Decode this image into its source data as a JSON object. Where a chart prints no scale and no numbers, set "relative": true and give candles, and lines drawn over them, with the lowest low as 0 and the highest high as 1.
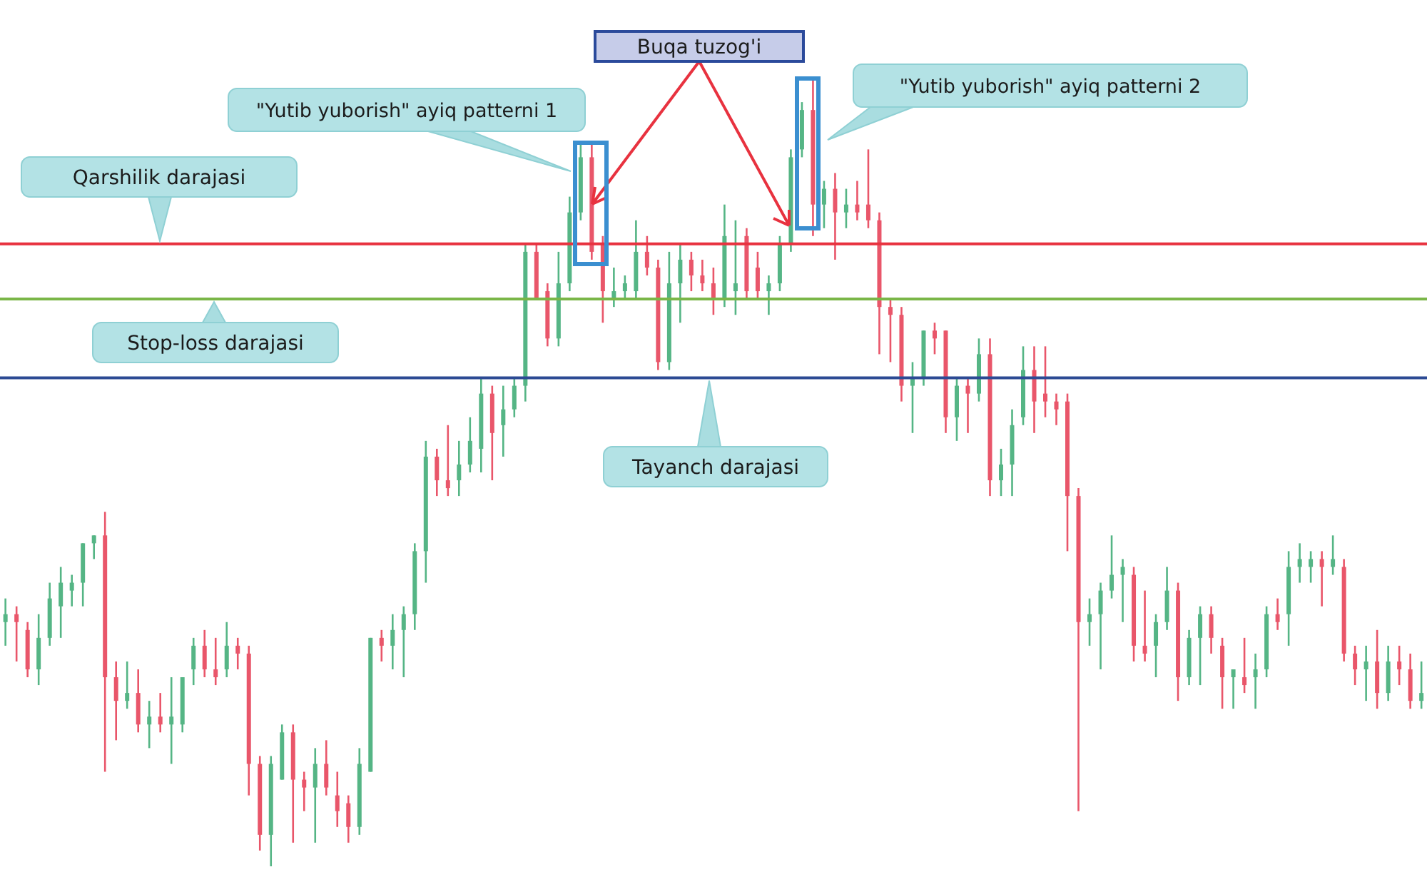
{
  "chart_data": {
    "type": "candlestick",
    "relative": true,
    "categories": [
      null,
      null,
      null,
      null,
      null,
      null,
      null,
      null,
      null,
      null,
      null,
      null,
      null,
      null,
      null,
      null,
      null,
      null,
      null,
      null,
      null,
      null,
      null,
      null,
      null,
      null,
      null,
      null,
      null,
      null,
      null,
      null,
      null,
      null,
      null,
      null,
      null,
      null,
      null,
      null,
      null,
      null,
      null,
      null,
      null,
      null,
      null,
      null,
      null,
      null,
      null,
      null,
      null,
      null,
      null,
      null,
      null,
      null,
      null,
      null,
      null,
      null,
      null,
      null,
      null,
      null,
      null,
      null,
      null,
      null,
      null,
      null,
      null,
      null,
      null,
      null,
      null,
      null,
      null,
      null,
      null,
      null,
      null,
      null,
      null,
      null,
      null,
      null,
      null,
      null,
      null,
      null,
      null,
      null,
      null,
      null,
      null,
      null,
      null,
      null,
      null,
      null,
      null,
      null,
      null,
      null,
      null,
      null,
      null,
      null,
      null,
      null,
      null,
      null,
      null,
      null,
      null,
      null,
      null,
      null,
      null,
      null,
      null,
      null,
      null,
      null,
      null,
      null,
      null
    ],
    "ohlc": [
      [
        0.31,
        0.34,
        0.28,
        0.32
      ],
      [
        0.32,
        0.33,
        0.26,
        0.31
      ],
      [
        0.3,
        0.31,
        0.24,
        0.25
      ],
      [
        0.25,
        0.32,
        0.23,
        0.29
      ],
      [
        0.29,
        0.36,
        0.28,
        0.34
      ],
      [
        0.33,
        0.38,
        0.29,
        0.36
      ],
      [
        0.35,
        0.37,
        0.33,
        0.36
      ],
      [
        0.36,
        0.41,
        0.33,
        0.41
      ],
      [
        0.41,
        0.42,
        0.39,
        0.42
      ],
      [
        0.42,
        0.45,
        0.12,
        0.24
      ],
      [
        0.24,
        0.26,
        0.16,
        0.21
      ],
      [
        0.21,
        0.26,
        0.2,
        0.22
      ],
      [
        0.22,
        0.25,
        0.17,
        0.18
      ],
      [
        0.18,
        0.21,
        0.15,
        0.19
      ],
      [
        0.19,
        0.22,
        0.17,
        0.18
      ],
      [
        0.18,
        0.24,
        0.13,
        0.19
      ],
      [
        0.18,
        0.24,
        0.17,
        0.24
      ],
      [
        0.25,
        0.29,
        0.23,
        0.28
      ],
      [
        0.28,
        0.3,
        0.24,
        0.25
      ],
      [
        0.25,
        0.29,
        0.23,
        0.24
      ],
      [
        0.25,
        0.31,
        0.24,
        0.28
      ],
      [
        0.28,
        0.29,
        0.25,
        0.27
      ],
      [
        0.27,
        0.28,
        0.09,
        0.13
      ],
      [
        0.13,
        0.14,
        0.02,
        0.04
      ],
      [
        0.04,
        0.14,
        0,
        0.13
      ],
      [
        0.11,
        0.18,
        0.11,
        0.17
      ],
      [
        0.17,
        0.18,
        0.03,
        0.11
      ],
      [
        0.11,
        0.12,
        0.07,
        0.1
      ],
      [
        0.1,
        0.15,
        0.03,
        0.13
      ],
      [
        0.13,
        0.16,
        0.09,
        0.1
      ],
      [
        0.09,
        0.12,
        0.05,
        0.07
      ],
      [
        0.08,
        0.09,
        0.03,
        0.05
      ],
      [
        0.05,
        0.15,
        0.04,
        0.13
      ],
      [
        0.12,
        0.29,
        0.12,
        0.29
      ],
      [
        0.29,
        0.3,
        0.26,
        0.28
      ],
      [
        0.28,
        0.32,
        0.25,
        0.3
      ],
      [
        0.3,
        0.33,
        0.24,
        0.32
      ],
      [
        0.32,
        0.41,
        0.3,
        0.4
      ],
      [
        0.4,
        0.54,
        0.36,
        0.52
      ],
      [
        0.52,
        0.53,
        0.47,
        0.49
      ],
      [
        0.49,
        0.56,
        0.47,
        0.48
      ],
      [
        0.49,
        0.54,
        0.47,
        0.51
      ],
      [
        0.51,
        0.57,
        0.5,
        0.54
      ],
      [
        0.53,
        0.62,
        0.5,
        0.6
      ],
      [
        0.6,
        0.61,
        0.49,
        0.55
      ],
      [
        0.56,
        0.61,
        0.52,
        0.58
      ],
      [
        0.58,
        0.62,
        0.57,
        0.61
      ],
      [
        0.61,
        0.79,
        0.59,
        0.78
      ],
      [
        0.78,
        0.79,
        0.72,
        0.72
      ],
      [
        0.73,
        0.74,
        0.66,
        0.67
      ],
      [
        0.67,
        0.78,
        0.66,
        0.74
      ],
      [
        0.74,
        0.85,
        0.73,
        0.83
      ],
      [
        0.83,
        0.92,
        0.82,
        0.9
      ],
      [
        0.9,
        0.92,
        0.77,
        0.78
      ],
      [
        0.79,
        0.8,
        0.69,
        0.73
      ],
      [
        0.72,
        0.76,
        0.71,
        0.73
      ],
      [
        0.73,
        0.75,
        0.72,
        0.74
      ],
      [
        0.73,
        0.82,
        0.72,
        0.78
      ],
      [
        0.78,
        0.8,
        0.75,
        0.76
      ],
      [
        0.76,
        0.77,
        0.63,
        0.64
      ],
      [
        0.64,
        0.78,
        0.63,
        0.74
      ],
      [
        0.74,
        0.79,
        0.69,
        0.77
      ],
      [
        0.77,
        0.78,
        0.73,
        0.75
      ],
      [
        0.75,
        0.77,
        0.73,
        0.74
      ],
      [
        0.74,
        0.76,
        0.7,
        0.72
      ],
      [
        0.72,
        0.84,
        0.71,
        0.8
      ],
      [
        0.73,
        0.82,
        0.7,
        0.74
      ],
      [
        0.8,
        0.81,
        0.72,
        0.73
      ],
      [
        0.76,
        0.78,
        0.72,
        0.73
      ],
      [
        0.73,
        0.75,
        0.7,
        0.74
      ],
      [
        0.74,
        0.8,
        0.73,
        0.79
      ],
      [
        0.79,
        0.91,
        0.78,
        0.9
      ],
      [
        0.91,
        0.97,
        0.9,
        0.96
      ],
      [
        0.96,
        1,
        0.8,
        0.84
      ],
      [
        0.84,
        0.87,
        0.81,
        0.86
      ],
      [
        0.86,
        0.88,
        0.77,
        0.83
      ],
      [
        0.83,
        0.86,
        0.81,
        0.84
      ],
      [
        0.84,
        0.87,
        0.82,
        0.83
      ],
      [
        0.84,
        0.91,
        0.81,
        0.82
      ],
      [
        0.82,
        0.83,
        0.65,
        0.71
      ],
      [
        0.71,
        0.72,
        0.64,
        0.7
      ],
      [
        0.7,
        0.71,
        0.59,
        0.61
      ],
      [
        0.61,
        0.64,
        0.55,
        0.62
      ],
      [
        0.62,
        0.68,
        0.61,
        0.68
      ],
      [
        0.68,
        0.69,
        0.65,
        0.67
      ],
      [
        0.68,
        0.68,
        0.55,
        0.57
      ],
      [
        0.57,
        0.62,
        0.54,
        0.61
      ],
      [
        0.61,
        0.62,
        0.55,
        0.6
      ],
      [
        0.6,
        0.67,
        0.59,
        0.65
      ],
      [
        0.65,
        0.67,
        0.47,
        0.49
      ],
      [
        0.49,
        0.53,
        0.47,
        0.51
      ],
      [
        0.51,
        0.58,
        0.47,
        0.56
      ],
      [
        0.57,
        0.66,
        0.56,
        0.63
      ],
      [
        0.63,
        0.66,
        0.55,
        0.59
      ],
      [
        0.6,
        0.66,
        0.57,
        0.59
      ],
      [
        0.59,
        0.6,
        0.56,
        0.58
      ],
      [
        0.59,
        0.6,
        0.4,
        0.47
      ],
      [
        0.47,
        0.48,
        0.07,
        0.31
      ],
      [
        0.31,
        0.34,
        0.28,
        0.32
      ],
      [
        0.32,
        0.36,
        0.25,
        0.35
      ],
      [
        0.35,
        0.42,
        0.34,
        0.37
      ],
      [
        0.37,
        0.39,
        0.31,
        0.38
      ],
      [
        0.37,
        0.38,
        0.26,
        0.28
      ],
      [
        0.28,
        0.35,
        0.26,
        0.27
      ],
      [
        0.28,
        0.32,
        0.24,
        0.31
      ],
      [
        0.31,
        0.38,
        0.3,
        0.35
      ],
      [
        0.35,
        0.36,
        0.21,
        0.24
      ],
      [
        0.24,
        0.3,
        0.23,
        0.29
      ],
      [
        0.29,
        0.33,
        0.23,
        0.32
      ],
      [
        0.32,
        0.33,
        0.27,
        0.29
      ],
      [
        0.28,
        0.29,
        0.2,
        0.24
      ],
      [
        0.24,
        0.25,
        0.2,
        0.25
      ],
      [
        0.24,
        0.29,
        0.22,
        0.23
      ],
      [
        0.24,
        0.27,
        0.2,
        0.25
      ],
      [
        0.25,
        0.33,
        0.24,
        0.32
      ],
      [
        0.32,
        0.34,
        0.3,
        0.31
      ],
      [
        0.32,
        0.4,
        0.28,
        0.38
      ],
      [
        0.38,
        0.41,
        0.36,
        0.39
      ],
      [
        0.38,
        0.4,
        0.36,
        0.39
      ],
      [
        0.39,
        0.4,
        0.33,
        0.38
      ],
      [
        0.38,
        0.42,
        0.37,
        0.39
      ],
      [
        0.38,
        0.39,
        0.26,
        0.27
      ],
      [
        0.27,
        0.28,
        0.23,
        0.25
      ],
      [
        0.25,
        0.28,
        0.21,
        0.26
      ],
      [
        0.26,
        0.3,
        0.2,
        0.22
      ],
      [
        0.22,
        0.28,
        0.21,
        0.26
      ],
      [
        0.26,
        0.28,
        0.23,
        0.25
      ],
      [
        0.25,
        0.27,
        0.2,
        0.21
      ],
      [
        0.21,
        0.26,
        0.2,
        0.22
      ]
    ],
    "ref_lines": [
      {
        "axis": "y",
        "value": 0.79,
        "label": "Qarshilik darajasi",
        "color": "#e8323f"
      },
      {
        "axis": "y",
        "value": 0.72,
        "label": "Stop-loss darajasi",
        "color": "#7ab648"
      },
      {
        "axis": "y",
        "value": 0.62,
        "label": "Tayanch darajasi",
        "color": "#2c4a94"
      }
    ],
    "annotations": [
      "Buqa tuzog'i",
      "\"Yutib yuborish\" ayiq patterni 1",
      "\"Yutib yuborish\" ayiq patterni 2"
    ]
  }
}
